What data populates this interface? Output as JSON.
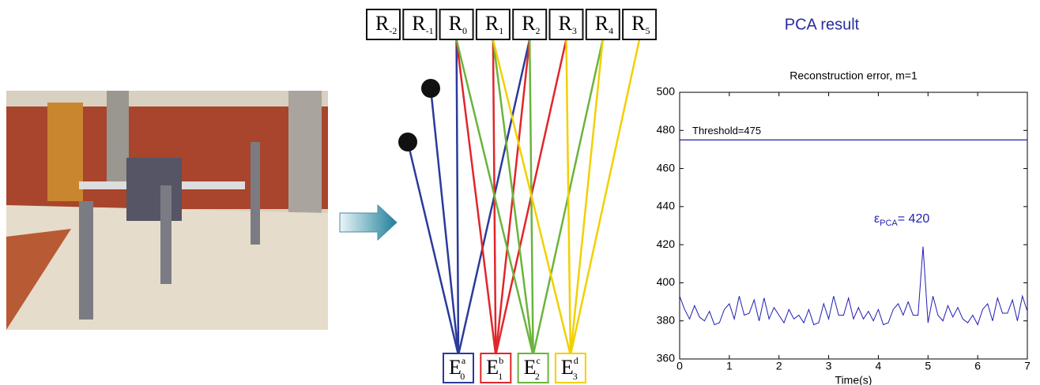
{
  "receivers": [
    {
      "letter": "R",
      "sub": "-2"
    },
    {
      "letter": "R",
      "sub": "-1"
    },
    {
      "letter": "R",
      "sub": "0"
    },
    {
      "letter": "R",
      "sub": "1"
    },
    {
      "letter": "R",
      "sub": "2"
    },
    {
      "letter": "R",
      "sub": "3"
    },
    {
      "letter": "R",
      "sub": "4"
    },
    {
      "letter": "R",
      "sub": "5"
    }
  ],
  "emitters": [
    {
      "letter": "E",
      "sup": "a",
      "sub": "0"
    },
    {
      "letter": "E",
      "sup": "b",
      "sub": "1"
    },
    {
      "letter": "E",
      "sup": "c",
      "sub": "2"
    },
    {
      "letter": "E",
      "sup": "d",
      "sub": "3"
    }
  ],
  "heading": "PCA result",
  "chart_data": {
    "type": "line",
    "title": "Reconstruction error, m=1",
    "x_label": "Time(s)",
    "color": "#1f1fb4",
    "xlim": [
      0,
      7
    ],
    "xticks": [
      0,
      1,
      2,
      3,
      4,
      5,
      6,
      7
    ],
    "ylim": [
      360,
      500
    ],
    "yticks": [
      360,
      380,
      400,
      420,
      440,
      460,
      480,
      500
    ],
    "grid": false,
    "threshold": {
      "value": 475,
      "label": "Threshold=475"
    },
    "annotation": {
      "symbol": "ε",
      "sub": "PCA",
      "text": "= 420",
      "x": 4.9,
      "y": 420
    },
    "x": [
      0,
      0.1,
      0.2,
      0.3,
      0.4,
      0.5,
      0.6,
      0.7,
      0.8,
      0.9,
      1,
      1.1,
      1.2,
      1.3,
      1.4,
      1.5,
      1.6,
      1.7,
      1.8,
      1.9,
      2,
      2.1,
      2.2,
      2.3,
      2.4,
      2.5,
      2.6,
      2.7,
      2.8,
      2.9,
      3,
      3.1,
      3.2,
      3.3,
      3.4,
      3.5,
      3.6,
      3.7,
      3.8,
      3.9,
      4,
      4.1,
      4.2,
      4.3,
      4.4,
      4.5,
      4.6,
      4.7,
      4.8,
      4.9,
      5,
      5.1,
      5.2,
      5.3,
      5.4,
      5.5,
      5.6,
      5.7,
      5.8,
      5.9,
      6,
      6.1,
      6.2,
      6.3,
      6.4,
      6.5,
      6.6,
      6.7,
      6.8,
      6.9,
      7
    ],
    "values": [
      393,
      386,
      381,
      388,
      382,
      380,
      385,
      378,
      379,
      386,
      389,
      381,
      393,
      383,
      384,
      391,
      380,
      392,
      381,
      387,
      383,
      379,
      386,
      381,
      383,
      379,
      386,
      378,
      379,
      389,
      381,
      393,
      383,
      383,
      392,
      381,
      387,
      381,
      385,
      380,
      386,
      378,
      379,
      386,
      389,
      383,
      390,
      383,
      383,
      419,
      379,
      393,
      383,
      380,
      388,
      382,
      387,
      381,
      379,
      383,
      378,
      386,
      389,
      380,
      392,
      384,
      384,
      391,
      380,
      393,
      385
    ]
  }
}
